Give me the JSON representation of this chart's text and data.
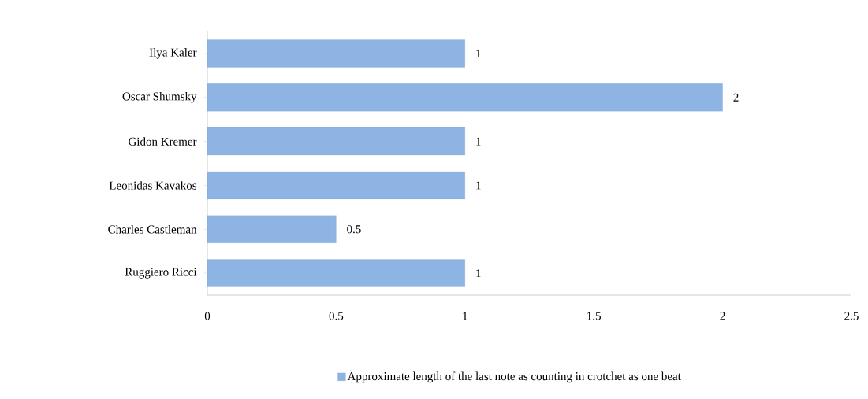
{
  "chart_data": {
    "type": "bar",
    "orientation": "horizontal",
    "categories": [
      "Ilya Kaler",
      "Oscar Shumsky",
      "Gidon Kremer",
      "Leonidas Kavakos",
      "Charles Castleman",
      "Ruggiero Ricci"
    ],
    "series": [
      {
        "name": "Approximate length of the last note as counting in crotchet as one beat",
        "color": "#8db4e2",
        "values": [
          1,
          2,
          1,
          1,
          0.5,
          1
        ]
      }
    ],
    "xlim": [
      0,
      2.5
    ],
    "xticks": [
      0,
      0.5,
      1,
      1.5,
      2,
      2.5
    ],
    "data_labels": true,
    "legend": "bottom",
    "grid": false
  }
}
